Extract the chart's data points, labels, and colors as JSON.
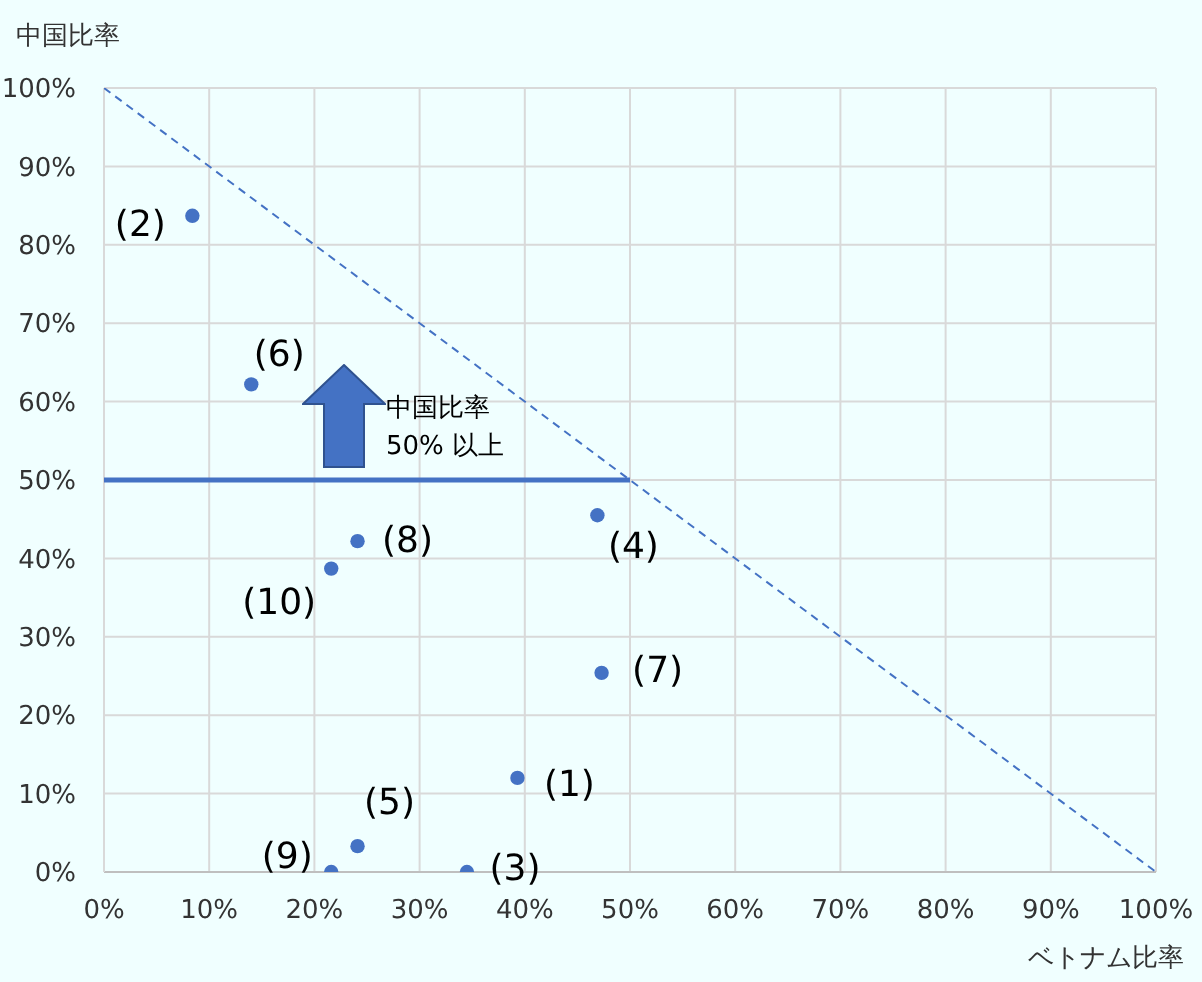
{
  "chart_data": {
    "type": "scatter",
    "xlabel": "ベトナム比率",
    "ylabel": "中国比率",
    "xlim": [
      0,
      100
    ],
    "ylim": [
      0,
      100
    ],
    "xticks": [
      {
        "value": 0,
        "label": "0%"
      },
      {
        "value": 10,
        "label": "10%"
      },
      {
        "value": 20,
        "label": "20%"
      },
      {
        "value": 30,
        "label": "30%"
      },
      {
        "value": 40,
        "label": "40%"
      },
      {
        "value": 50,
        "label": "50%"
      },
      {
        "value": 60,
        "label": "60%"
      },
      {
        "value": 70,
        "label": "70%"
      },
      {
        "value": 80,
        "label": "80%"
      },
      {
        "value": 90,
        "label": "90%"
      },
      {
        "value": 100,
        "label": "100%"
      }
    ],
    "yticks": [
      {
        "value": 0,
        "label": "0%"
      },
      {
        "value": 10,
        "label": "10%"
      },
      {
        "value": 20,
        "label": "20%"
      },
      {
        "value": 30,
        "label": "30%"
      },
      {
        "value": 40,
        "label": "40%"
      },
      {
        "value": 50,
        "label": "50%"
      },
      {
        "value": 60,
        "label": "60%"
      },
      {
        "value": 70,
        "label": "70%"
      },
      {
        "value": 80,
        "label": "80%"
      },
      {
        "value": 90,
        "label": "90%"
      },
      {
        "value": 100,
        "label": "100%"
      }
    ],
    "grid": true,
    "series": [
      {
        "color": "#4472c4",
        "marker": "circle",
        "x": [
          39.3,
          8.4,
          34.5,
          46.9,
          24.1,
          14.0,
          47.3,
          24.1,
          21.6,
          21.6
        ],
        "values": [
          12.0,
          83.7,
          0,
          45.5,
          3.3,
          62.2,
          25.4,
          42.2,
          0,
          38.7
        ]
      },
      {
        "type": "line",
        "color": "#4472c4",
        "marker": "none",
        "line_style": "solid",
        "x": [
          0,
          50
        ],
        "values": [
          50,
          50
        ]
      },
      {
        "type": "line",
        "color": "#4472c4",
        "marker": "none",
        "line_style": "dashed",
        "x": [
          0,
          100
        ],
        "values": [
          100,
          0
        ]
      }
    ],
    "annotations": [
      "中国比率\n50% 以上",
      {
        "text": "(1)",
        "x": 39.3,
        "y": 12.0
      },
      {
        "text": "(2)",
        "x": 8.4,
        "y": 83.7
      },
      {
        "text": "(3)",
        "x": 34.5,
        "y": 0
      },
      {
        "text": "(4)",
        "x": 46.9,
        "y": 45.5
      },
      {
        "text": "(5)",
        "x": 24.1,
        "y": 3.3
      },
      {
        "text": "(6)",
        "x": 14.0,
        "y": 62.2
      },
      {
        "text": "(7)",
        "x": 47.3,
        "y": 25.4
      },
      {
        "text": "(8)",
        "x": 24.1,
        "y": 42.2
      },
      {
        "text": "(9)",
        "x": 21.6,
        "y": 0
      },
      {
        "text": "(10)",
        "x": 21.6,
        "y": 38.7
      }
    ]
  }
}
